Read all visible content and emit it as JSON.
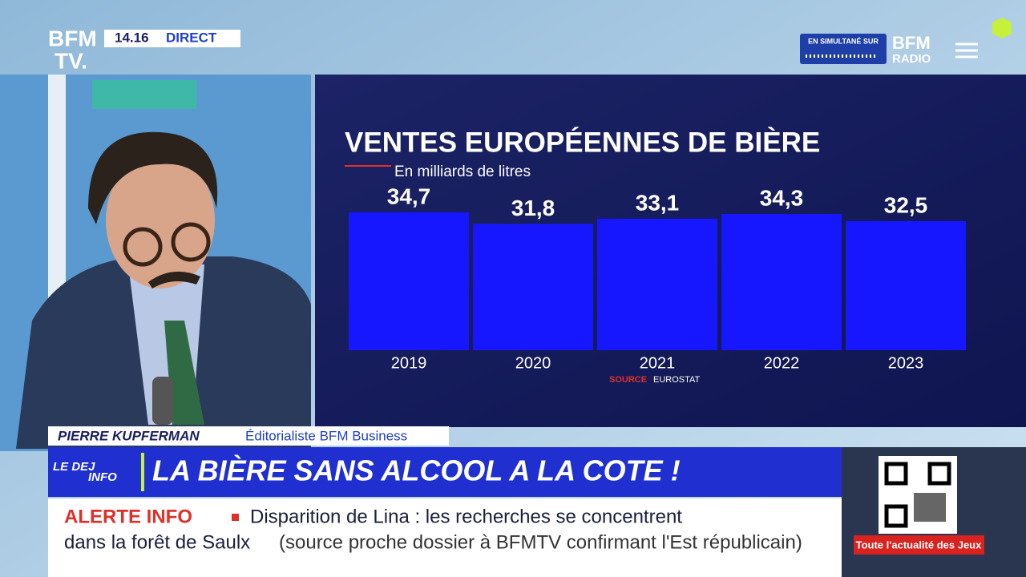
{
  "broadcast": {
    "logo_top": "BFM",
    "logo_bottom": "TV.",
    "time": "14.16",
    "live": "DIRECT",
    "simulcast": "EN SIMULTANÉ SUR",
    "radio_top": "BFM",
    "radio_bottom": "RADIO"
  },
  "chart_data": {
    "type": "bar",
    "title": "VENTES EUROPÉENNES DE BIÈRE",
    "subtitle": "En milliards de litres",
    "categories": [
      "2019",
      "2020",
      "2021",
      "2022",
      "2023"
    ],
    "values": [
      34.7,
      31.8,
      33.1,
      34.3,
      32.5
    ],
    "value_labels": [
      "34,7",
      "31,8",
      "33,1",
      "34,3",
      "32,5"
    ],
    "color": "#1616ff",
    "source_label": "SOURCE",
    "source": "EUROSTAT"
  },
  "lower_third": {
    "name": "PIERRE KUPFERMAN",
    "role": "Éditorialiste BFM Business",
    "show_top": "LE DEJ",
    "show_bottom": "INFO",
    "headline": "LA BIÈRE SANS ALCOOL A LA COTE !"
  },
  "ticker": {
    "tag": "ALERTE INFO",
    "line1": "Disparition de Lina : les recherches se concentrent",
    "line2": "dans la forêt de Saulx",
    "line2_note": "(source proche dossier à BFMTV confirmant l'Est républicain)",
    "promo": "Toute l'actualité des Jeux"
  }
}
